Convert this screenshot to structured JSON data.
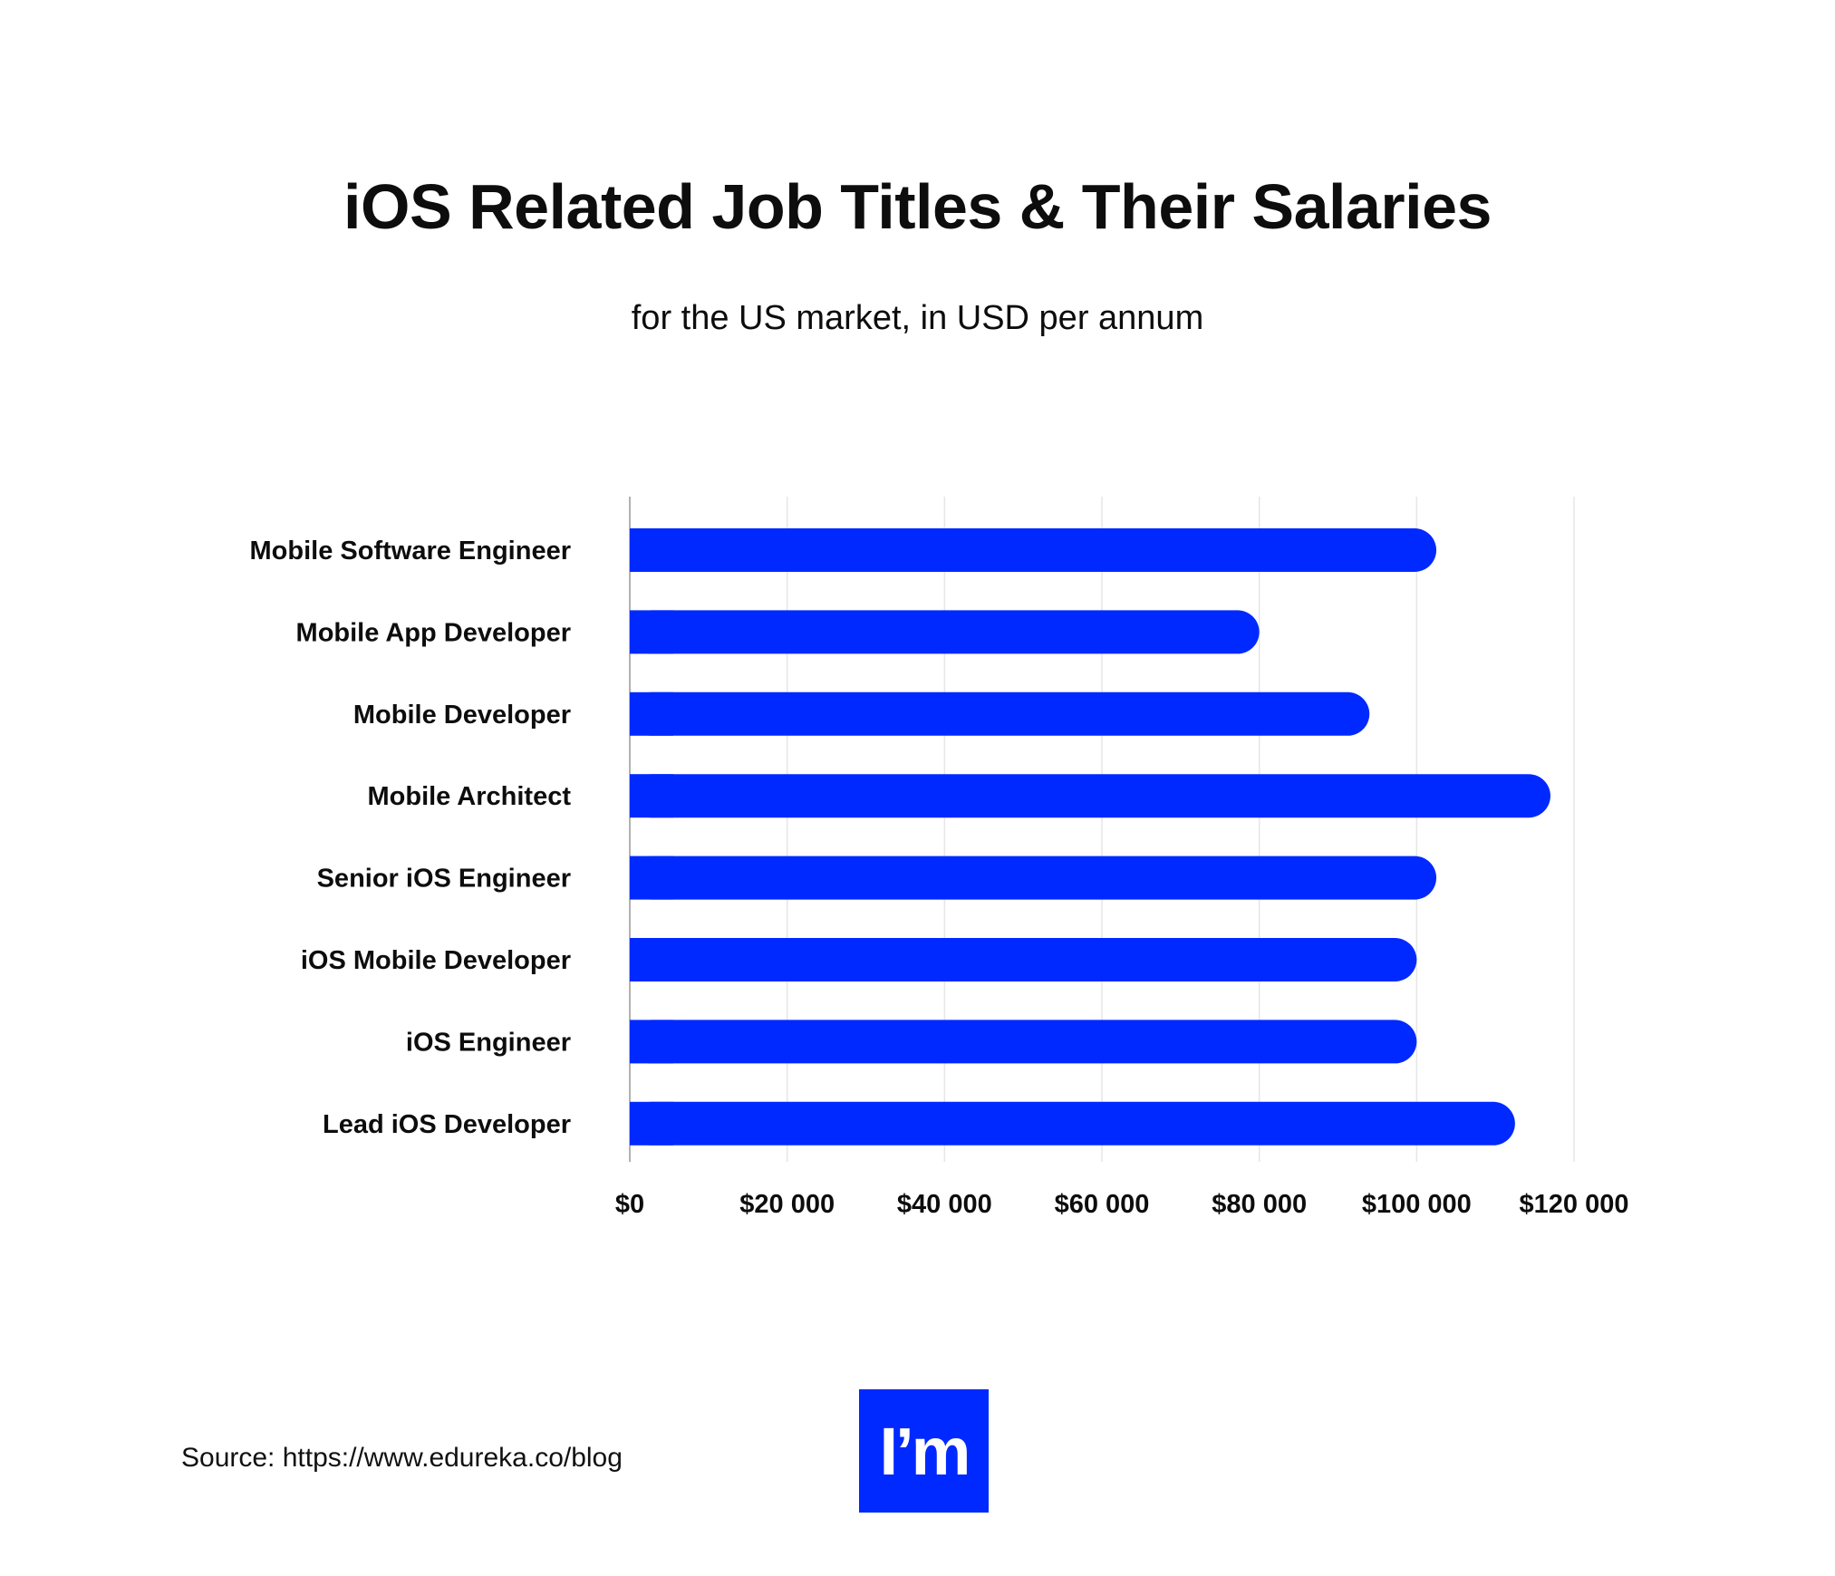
{
  "chart_data": {
    "type": "bar",
    "orientation": "horizontal",
    "title": "iOS Related Job Titles & Their Salaries",
    "subtitle": "for the US market, in USD per annum",
    "categories": [
      "Mobile Software Engineer",
      "Mobile App Developer",
      "Mobile Developer",
      "Mobile Architect",
      "Senior iOS Engineer",
      "iOS Mobile Developer",
      "iOS Engineer",
      "Lead iOS Developer"
    ],
    "values": [
      102500,
      80000,
      94000,
      117000,
      102500,
      100000,
      100000,
      112500
    ],
    "xlim": [
      0,
      120000
    ],
    "xticks": [
      0,
      20000,
      40000,
      60000,
      80000,
      100000,
      120000
    ],
    "xtick_labels": [
      "$0",
      "$20 000",
      "$40 000",
      "$60 000",
      "$80 000",
      "$100 000",
      "$120 000"
    ],
    "xlabel": "",
    "ylabel": "",
    "grid": true,
    "bar_color": "#0029ff"
  },
  "footer": {
    "source": "Source: https://www.edureka.co/blog",
    "logo_text": "I’m"
  },
  "colors": {
    "accent": "#0029ff",
    "gridline": "#e6e6e6",
    "axis": "#999999"
  }
}
